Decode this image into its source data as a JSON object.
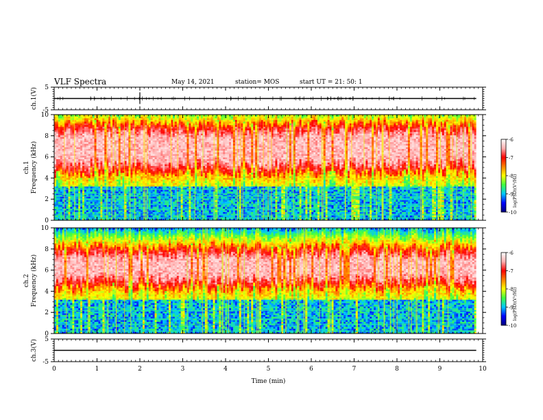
{
  "header": {
    "title": "VLF Spectra",
    "date": "May 14, 2021",
    "station": "station= MOS",
    "start_ut": "start  UT =   21: 50: 1"
  },
  "colors": {
    "colormap": [
      "#00007a",
      "#0000ff",
      "#00c8ff",
      "#40ff40",
      "#ffff00",
      "#ff8000",
      "#ff0000",
      "#ffb0b0",
      "#ffffff"
    ],
    "trace": "#000000"
  },
  "chart_data": [
    {
      "type": "line",
      "panel": "ch1-waveform",
      "ylabel": "ch.1(V)",
      "ylim": [
        -5,
        5
      ],
      "yticks": [
        "5",
        "-5"
      ],
      "series": [
        {
          "values": [
            0,
            0
          ]
        }
      ],
      "x": [
        0,
        9.85
      ]
    },
    {
      "type": "heatmap",
      "panel": "ch1-spectrogram",
      "ylabel": "ch.1\nFrequency (kHz)",
      "ylim": [
        0,
        10
      ],
      "yticks": [
        "0",
        "2",
        "4",
        "6",
        "8",
        "10"
      ],
      "band_khz": [
        4.5,
        9.2
      ],
      "colorbar": {
        "label": "log(PSD)(V²/Hz)",
        "ticks": [
          "-6",
          "-7",
          "-8",
          "-9",
          "-10"
        ],
        "range": [
          -10,
          -6
        ]
      }
    },
    {
      "type": "heatmap",
      "panel": "ch2-spectrogram",
      "ylabel": "ch.2\nFrequency (kHz)",
      "ylim": [
        0,
        10
      ],
      "yticks": [
        "0",
        "2",
        "4",
        "6",
        "8",
        "10"
      ],
      "band_khz": [
        4.3,
        8.3
      ],
      "colorbar": {
        "label": "log(PSD)(V²/Hz)",
        "ticks": [
          "-6",
          "-7",
          "-8",
          "-9",
          "-10"
        ],
        "range": [
          -10,
          -6
        ]
      }
    },
    {
      "type": "line",
      "panel": "ch3-waveform",
      "ylabel": "ch.3(V)",
      "ylim": [
        -5,
        5
      ],
      "yticks": [
        "5",
        "-5"
      ],
      "series": [
        {
          "values": [
            0,
            0
          ]
        }
      ],
      "x": [
        0,
        9.85
      ]
    }
  ],
  "x_axis": {
    "label": "Time  (min)",
    "ticks": [
      "0",
      "1",
      "2",
      "3",
      "4",
      "5",
      "6",
      "7",
      "8",
      "9",
      "10"
    ],
    "xlim": [
      0,
      10
    ]
  }
}
